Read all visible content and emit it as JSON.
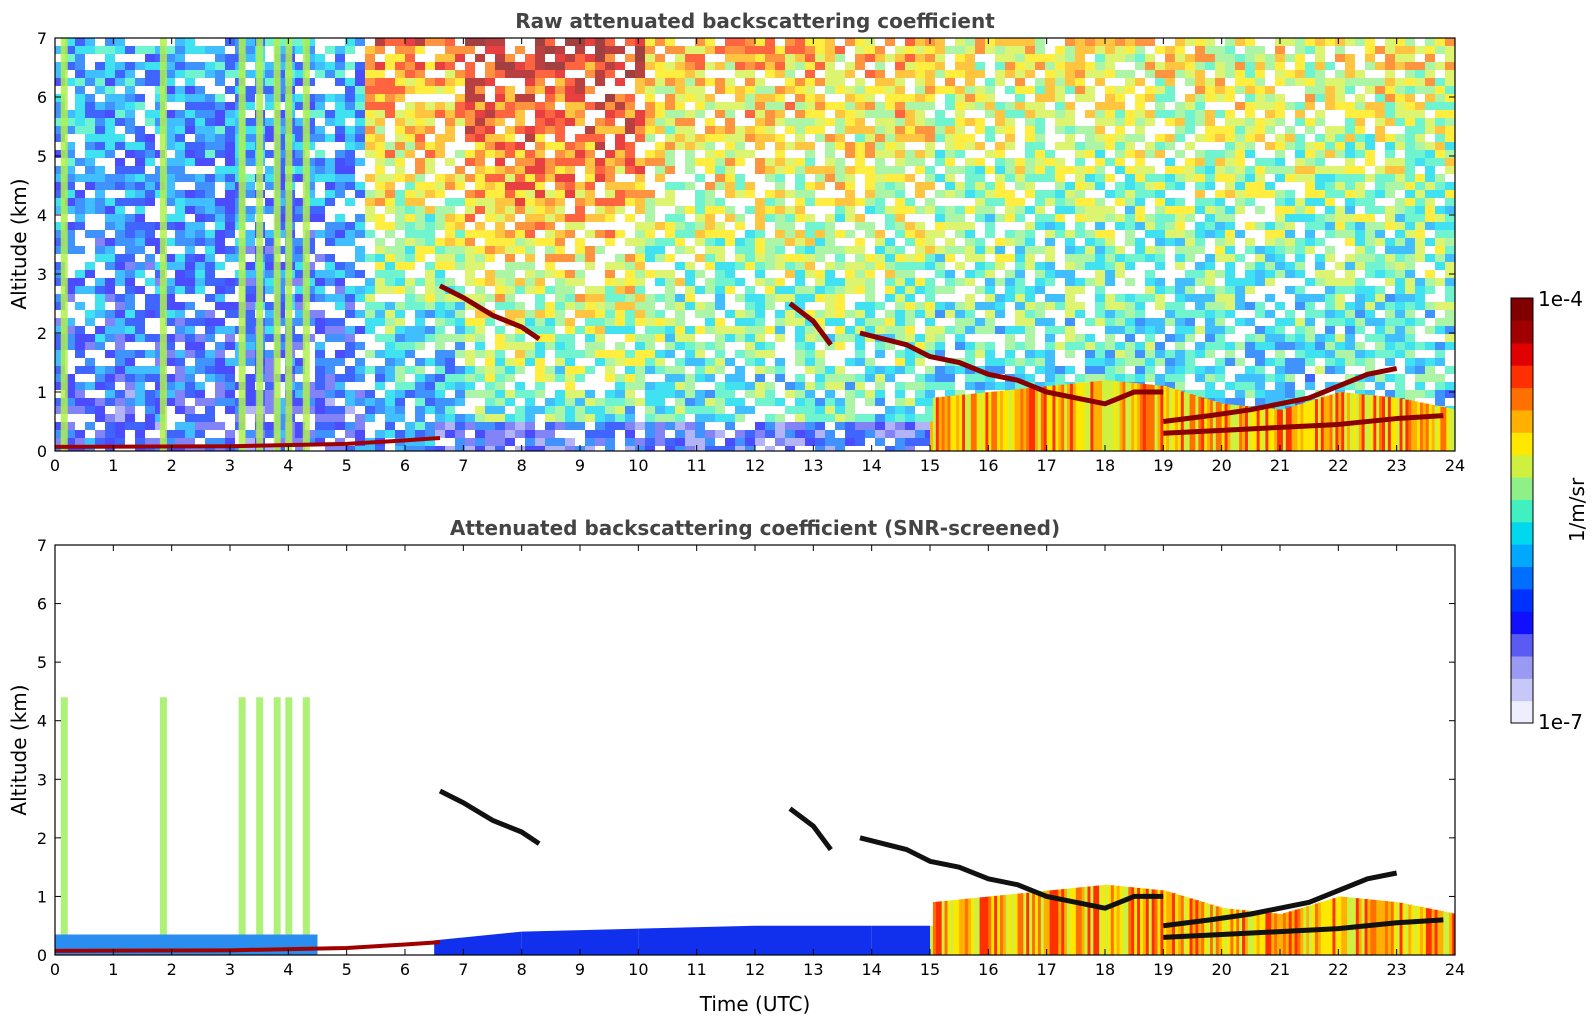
{
  "colorbar": {
    "label": "1/m/sr",
    "max_label": "1e-4",
    "min_label": "1e-7",
    "scale": "log",
    "colors": [
      "#eeeeff",
      "#c8c8f8",
      "#9a9af5",
      "#5a5af5",
      "#1010ff",
      "#0032ff",
      "#006eff",
      "#00a8ff",
      "#00d8ee",
      "#40f0c0",
      "#90f088",
      "#d0f040",
      "#ffe800",
      "#ffb000",
      "#ff7000",
      "#ff3000",
      "#e00000",
      "#a00000",
      "#800000"
    ]
  },
  "chart_data": [
    {
      "type": "heatmap",
      "title": "Raw attenuated backscattering coefficient",
      "xlabel": "",
      "ylabel": "Altitude (km)",
      "xlim": [
        0,
        24
      ],
      "ylim": [
        0,
        7
      ],
      "xticks": [
        "0",
        "1",
        "2",
        "3",
        "4",
        "5",
        "6",
        "7",
        "8",
        "9",
        "10",
        "11",
        "12",
        "13",
        "14",
        "15",
        "16",
        "17",
        "18",
        "19",
        "20",
        "21",
        "22",
        "23",
        "24"
      ],
      "yticks": [
        "0",
        "1",
        "2",
        "3",
        "4",
        "5",
        "6",
        "7"
      ],
      "grid": false,
      "colorbar_range": [
        "1e-7",
        "1e-4"
      ],
      "features": {
        "surface_layer": [
          [
            0,
            0.07
          ],
          [
            3,
            0.08
          ],
          [
            5,
            0.12
          ],
          [
            6,
            0.18
          ],
          [
            6.6,
            0.22
          ]
        ],
        "aerosol_columns_hours": [
          0.15,
          1.85,
          3.2,
          3.5,
          3.8,
          4.0,
          4.3
        ],
        "plume_layers": [
          [
            [
              6.6,
              2.8
            ],
            [
              7.0,
              2.6
            ],
            [
              7.5,
              2.3
            ],
            [
              8.0,
              2.1
            ],
            [
              8.3,
              1.9
            ]
          ],
          [
            [
              12.6,
              2.5
            ],
            [
              13.0,
              2.2
            ],
            [
              13.3,
              1.8
            ]
          ],
          [
            [
              13.8,
              2.0
            ],
            [
              14.2,
              1.9
            ],
            [
              14.6,
              1.8
            ],
            [
              15.0,
              1.6
            ],
            [
              15.5,
              1.5
            ],
            [
              16.0,
              1.3
            ],
            [
              16.5,
              1.2
            ],
            [
              17.0,
              1.0
            ],
            [
              17.5,
              0.9
            ],
            [
              18.0,
              0.8
            ],
            [
              18.5,
              1.0
            ],
            [
              19.0,
              1.0
            ]
          ],
          [
            [
              19.0,
              0.5
            ],
            [
              19.8,
              0.6
            ],
            [
              20.5,
              0.7
            ],
            [
              21.5,
              0.9
            ],
            [
              22.5,
              1.3
            ],
            [
              23.0,
              1.4
            ]
          ],
          [
            [
              19.0,
              0.3
            ],
            [
              20.0,
              0.35
            ],
            [
              21.0,
              0.4
            ],
            [
              22.0,
              0.45
            ],
            [
              23.0,
              0.55
            ],
            [
              23.8,
              0.6
            ]
          ]
        ],
        "boundary_layer_top": [
          [
            6.5,
            0.25
          ],
          [
            8,
            0.4
          ],
          [
            10,
            0.45
          ],
          [
            12,
            0.5
          ],
          [
            14,
            0.5
          ],
          [
            15,
            0.5
          ],
          [
            15,
            0.9
          ],
          [
            16,
            1.0
          ],
          [
            18,
            1.2
          ],
          [
            19,
            1.1
          ],
          [
            20,
            0.8
          ],
          [
            21,
            0.7
          ],
          [
            22,
            1.0
          ],
          [
            23,
            0.9
          ],
          [
            24,
            0.7
          ]
        ]
      }
    },
    {
      "type": "heatmap",
      "title": "Attenuated backscattering coefficient (SNR-screened)",
      "xlabel": "Time (UTC)",
      "ylabel": "Altitude (km)",
      "xlim": [
        0,
        24
      ],
      "ylim": [
        0,
        7
      ],
      "xticks": [
        "0",
        "1",
        "2",
        "3",
        "4",
        "5",
        "6",
        "7",
        "8",
        "9",
        "10",
        "11",
        "12",
        "13",
        "14",
        "15",
        "16",
        "17",
        "18",
        "19",
        "20",
        "21",
        "22",
        "23",
        "24"
      ],
      "yticks": [
        "0",
        "1",
        "2",
        "3",
        "4",
        "5",
        "6",
        "7"
      ],
      "grid": false,
      "colorbar_range": [
        "1e-7",
        "1e-4"
      ],
      "features": {
        "surface_layer": [
          [
            0,
            0.07
          ],
          [
            3,
            0.08
          ],
          [
            5,
            0.12
          ],
          [
            6,
            0.18
          ],
          [
            6.6,
            0.22
          ]
        ],
        "aerosol_columns_hours": [
          0.15,
          1.85,
          3.2,
          3.5,
          3.8,
          4.0,
          4.3
        ],
        "plume_layers": [
          [
            [
              6.6,
              2.8
            ],
            [
              7.0,
              2.6
            ],
            [
              7.5,
              2.3
            ],
            [
              8.0,
              2.1
            ],
            [
              8.3,
              1.9
            ]
          ],
          [
            [
              12.6,
              2.5
            ],
            [
              13.0,
              2.2
            ],
            [
              13.3,
              1.8
            ]
          ],
          [
            [
              13.8,
              2.0
            ],
            [
              14.2,
              1.9
            ],
            [
              14.6,
              1.8
            ],
            [
              15.0,
              1.6
            ],
            [
              15.5,
              1.5
            ],
            [
              16.0,
              1.3
            ],
            [
              16.5,
              1.2
            ],
            [
              17.0,
              1.0
            ],
            [
              17.5,
              0.9
            ],
            [
              18.0,
              0.8
            ],
            [
              18.5,
              1.0
            ],
            [
              19.0,
              1.0
            ]
          ],
          [
            [
              19.0,
              0.5
            ],
            [
              19.8,
              0.6
            ],
            [
              20.5,
              0.7
            ],
            [
              21.5,
              0.9
            ],
            [
              22.5,
              1.3
            ],
            [
              23.0,
              1.4
            ]
          ],
          [
            [
              19.0,
              0.3
            ],
            [
              20.0,
              0.35
            ],
            [
              21.0,
              0.4
            ],
            [
              22.0,
              0.45
            ],
            [
              23.0,
              0.55
            ],
            [
              23.8,
              0.6
            ]
          ]
        ],
        "boundary_layer_top": [
          [
            6.5,
            0.25
          ],
          [
            8,
            0.4
          ],
          [
            10,
            0.45
          ],
          [
            12,
            0.5
          ],
          [
            14,
            0.5
          ],
          [
            15,
            0.5
          ],
          [
            15,
            0.9
          ],
          [
            16,
            1.0
          ],
          [
            18,
            1.2
          ],
          [
            19,
            1.1
          ],
          [
            20,
            0.8
          ],
          [
            21,
            0.7
          ],
          [
            22,
            1.0
          ],
          [
            23,
            0.9
          ],
          [
            24,
            0.7
          ]
        ]
      }
    }
  ]
}
